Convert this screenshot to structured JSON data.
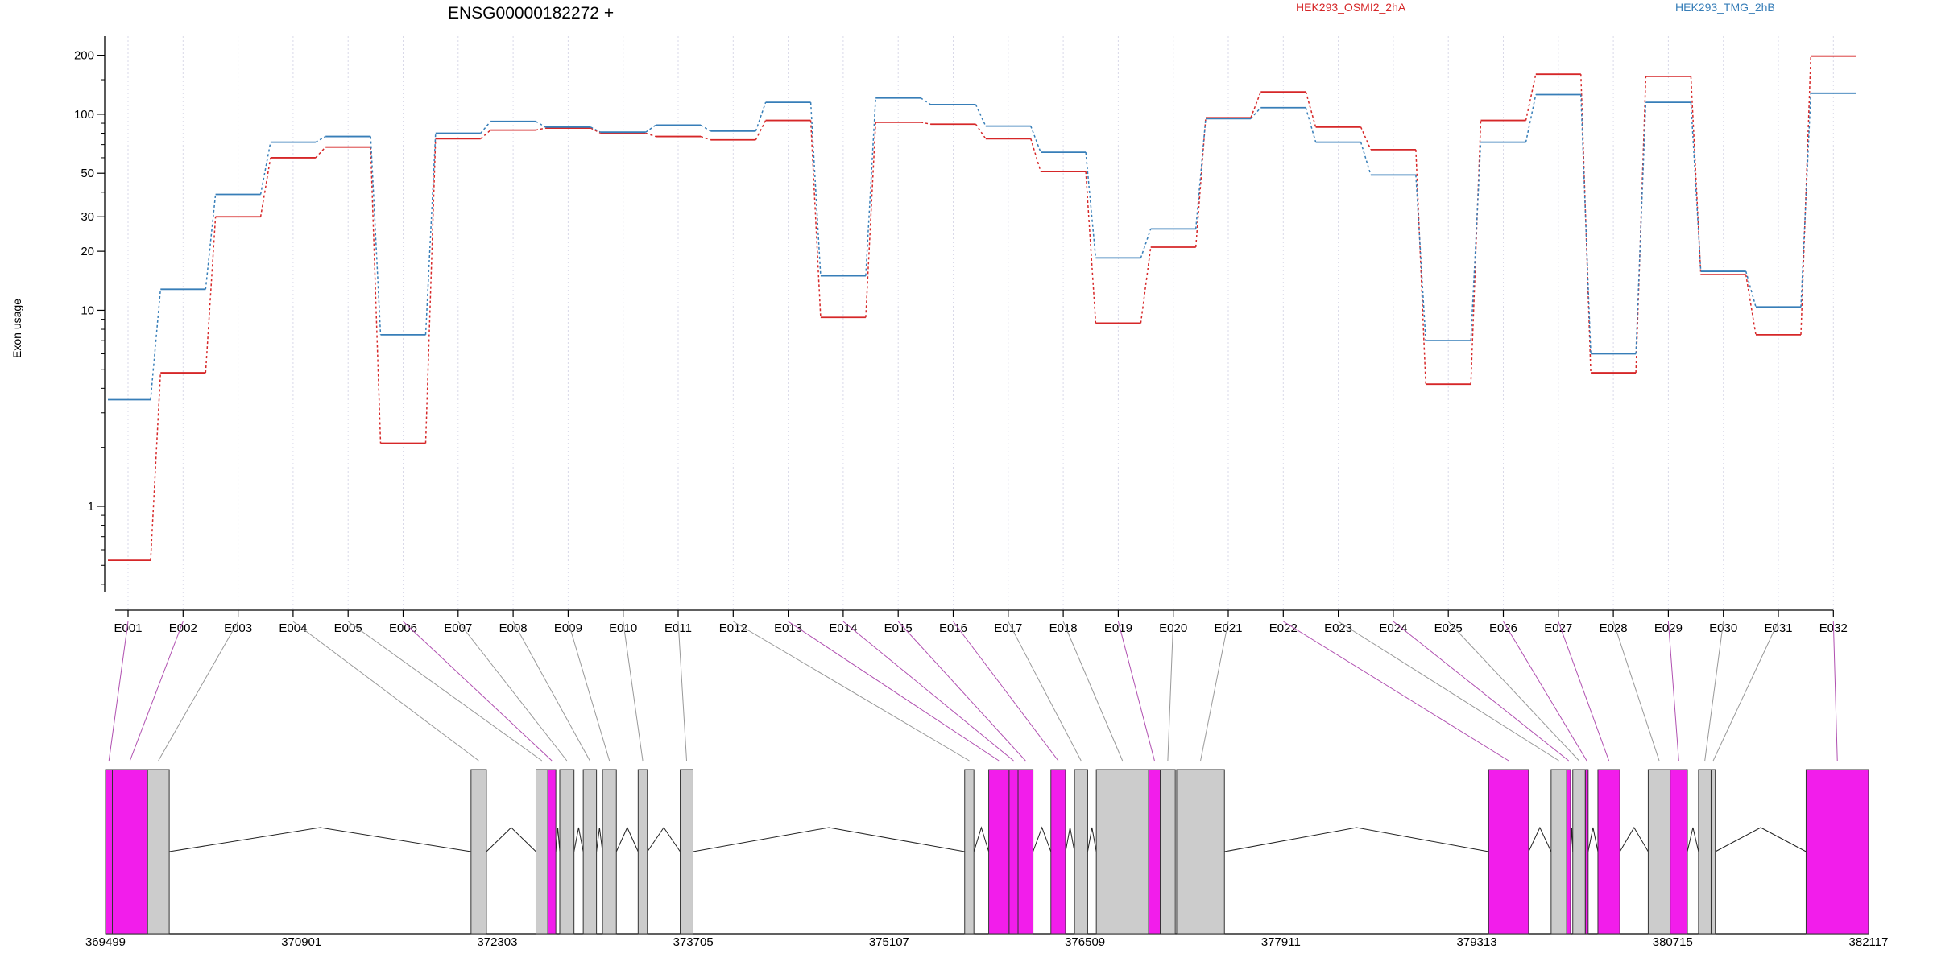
{
  "chart_data": {
    "type": "line",
    "title": "ENSG00000182272 +",
    "ylabel": "Exon usage",
    "yscale": "log",
    "ylim": [
      0.35,
      250
    ],
    "yticks": [
      1,
      10,
      20,
      30,
      50,
      100,
      200
    ],
    "grid": "vertical dotted lines at exon positions",
    "categories": [
      "E001",
      "E002",
      "E003",
      "E004",
      "E005",
      "E006",
      "E007",
      "E008",
      "E009",
      "E010",
      "E011",
      "E012",
      "E013",
      "E014",
      "E015",
      "E016",
      "E017",
      "E018",
      "E019",
      "E020",
      "E021",
      "E022",
      "E023",
      "E024",
      "E025",
      "E026",
      "E027",
      "E028",
      "E029",
      "E030",
      "E031",
      "E032"
    ],
    "series": [
      {
        "name": "HEK293_OSMI2_2hA",
        "color": "#d62728",
        "values": [
          0.53,
          4.8,
          30,
          60,
          68,
          2.1,
          75,
          83,
          85,
          80,
          77,
          74,
          93,
          9.2,
          91,
          89,
          75,
          51,
          8.6,
          21,
          96,
          130,
          86,
          66,
          4.2,
          93,
          160,
          4.8,
          156,
          15.2,
          7.5,
          198
        ]
      },
      {
        "name": "HEK293_TMG_2hB",
        "color": "#377eb8",
        "values": [
          3.5,
          12.8,
          39,
          72,
          77,
          7.5,
          80,
          92,
          86,
          81,
          88,
          82,
          115,
          15,
          121,
          112,
          87,
          64,
          18.5,
          26,
          95,
          108,
          72,
          49,
          7.0,
          72,
          126,
          6.0,
          115,
          15.8,
          10.4,
          128
        ]
      }
    ],
    "legend": "top",
    "gene_model": {
      "axis_ticks": [
        "369499",
        "370901",
        "372303",
        "373705",
        "375107",
        "376509",
        "377911",
        "379313",
        "380715",
        "382117"
      ],
      "axis_range": [
        369499,
        382117
      ],
      "highlight_color": "#f21deb",
      "box_color": "#cccccc",
      "exon_blocks": [
        {
          "start": 369499,
          "end": 369548,
          "highlighted": true
        },
        {
          "start": 369548,
          "end": 369800,
          "highlighted": true
        },
        {
          "start": 369800,
          "end": 369955,
          "highlighted": false
        },
        {
          "start": 372115,
          "end": 372225,
          "highlighted": false
        },
        {
          "start": 372580,
          "end": 372665,
          "highlighted": false
        },
        {
          "start": 372665,
          "end": 372722,
          "highlighted": true
        },
        {
          "start": 372750,
          "end": 372852,
          "highlighted": false
        },
        {
          "start": 372918,
          "end": 373013,
          "highlighted": false
        },
        {
          "start": 373056,
          "end": 373155,
          "highlighted": false
        },
        {
          "start": 373311,
          "end": 373377,
          "highlighted": false
        },
        {
          "start": 373612,
          "end": 373704,
          "highlighted": false
        },
        {
          "start": 375648,
          "end": 375714,
          "highlighted": false
        },
        {
          "start": 375820,
          "end": 375966,
          "highlighted": true
        },
        {
          "start": 375966,
          "end": 376030,
          "highlighted": true
        },
        {
          "start": 376030,
          "end": 376137,
          "highlighted": true
        },
        {
          "start": 376265,
          "end": 376370,
          "highlighted": true
        },
        {
          "start": 376434,
          "end": 376528,
          "highlighted": false
        },
        {
          "start": 376590,
          "end": 376965,
          "highlighted": false
        },
        {
          "start": 376965,
          "end": 377048,
          "highlighted": true
        },
        {
          "start": 377048,
          "end": 377155,
          "highlighted": false
        },
        {
          "start": 377165,
          "end": 377507,
          "highlighted": false
        },
        {
          "start": 379398,
          "end": 379684,
          "highlighted": true
        },
        {
          "start": 379845,
          "end": 379957,
          "highlighted": false
        },
        {
          "start": 379957,
          "end": 379985,
          "highlighted": true
        },
        {
          "start": 380000,
          "end": 380090,
          "highlighted": false
        },
        {
          "start": 380090,
          "end": 380110,
          "highlighted": true
        },
        {
          "start": 380180,
          "end": 380337,
          "highlighted": true
        },
        {
          "start": 380540,
          "end": 380697,
          "highlighted": false
        },
        {
          "start": 380697,
          "end": 380820,
          "highlighted": true
        },
        {
          "start": 380900,
          "end": 380990,
          "highlighted": false
        },
        {
          "start": 380990,
          "end": 381020,
          "highlighted": false
        },
        {
          "start": 381670,
          "end": 382117,
          "highlighted": true
        }
      ],
      "introns": [
        [
          369955,
          372115
        ],
        [
          372225,
          372580
        ],
        [
          372722,
          372750
        ],
        [
          372852,
          372918
        ],
        [
          373013,
          373056
        ],
        [
          373155,
          373311
        ],
        [
          373377,
          373612
        ],
        [
          373704,
          375648
        ],
        [
          375714,
          375820
        ],
        [
          376137,
          376265
        ],
        [
          376370,
          376434
        ],
        [
          376528,
          376590
        ],
        [
          377507,
          379398
        ],
        [
          379684,
          379845
        ],
        [
          379985,
          380000
        ],
        [
          380110,
          380180
        ],
        [
          380337,
          380540
        ],
        [
          380820,
          380900
        ],
        [
          381020,
          381670
        ]
      ]
    }
  }
}
